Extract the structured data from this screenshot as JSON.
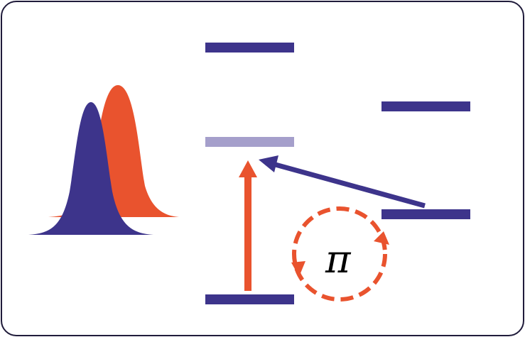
{
  "diagram": {
    "symbol_label": "π"
  },
  "colors": {
    "level": "#3d348b",
    "level_faded": "#a59fcb",
    "accent": "#e9532e",
    "frame_border": "#1f1b3a",
    "text": "#000000"
  },
  "icons": {
    "excitation_arrow": "arrow-up-icon",
    "transfer_arrow": "arrow-left-icon",
    "cycle": "circular-arrows-icon"
  }
}
